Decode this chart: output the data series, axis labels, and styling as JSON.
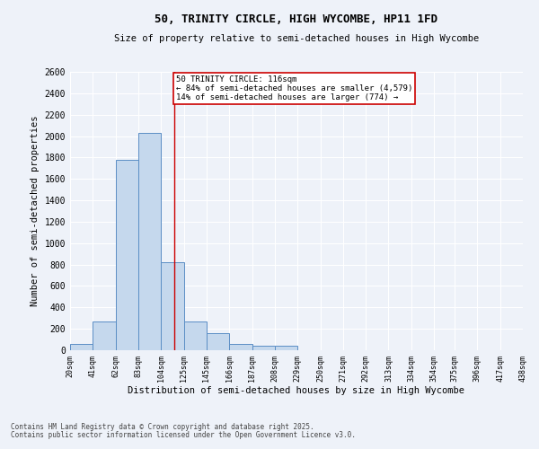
{
  "title": "50, TRINITY CIRCLE, HIGH WYCOMBE, HP11 1FD",
  "subtitle": "Size of property relative to semi-detached houses in High Wycombe",
  "xlabel": "Distribution of semi-detached houses by size in High Wycombe",
  "ylabel": "Number of semi-detached properties",
  "footnote1": "Contains HM Land Registry data © Crown copyright and database right 2025.",
  "footnote2": "Contains public sector information licensed under the Open Government Licence v3.0.",
  "annotation_title": "50 TRINITY CIRCLE: 116sqm",
  "annotation_line1": "← 84% of semi-detached houses are smaller (4,579)",
  "annotation_line2": "14% of semi-detached houses are larger (774) →",
  "property_size": 116,
  "bin_edges": [
    20,
    41,
    62,
    83,
    104,
    125,
    146,
    167,
    188,
    209,
    230,
    251,
    272,
    293,
    314,
    335,
    356,
    375,
    396,
    417,
    438
  ],
  "bin_labels": [
    "20sqm",
    "41sqm",
    "62sqm",
    "83sqm",
    "104sqm",
    "125sqm",
    "145sqm",
    "166sqm",
    "187sqm",
    "208sqm",
    "229sqm",
    "250sqm",
    "271sqm",
    "292sqm",
    "313sqm",
    "334sqm",
    "354sqm",
    "375sqm",
    "396sqm",
    "417sqm",
    "438sqm"
  ],
  "bar_heights": [
    60,
    270,
    1780,
    2030,
    820,
    270,
    160,
    55,
    45,
    40,
    0,
    0,
    0,
    0,
    0,
    0,
    0,
    0,
    0,
    0
  ],
  "bar_color": "#c5d8ed",
  "bar_edge_color": "#5b8ec5",
  "vline_color": "#cc0000",
  "annotation_box_color": "#cc0000",
  "background_color": "#eef2f9",
  "grid_color": "#ffffff",
  "ylim": [
    0,
    2600
  ],
  "yticks": [
    0,
    200,
    400,
    600,
    800,
    1000,
    1200,
    1400,
    1600,
    1800,
    2000,
    2200,
    2400,
    2600
  ]
}
